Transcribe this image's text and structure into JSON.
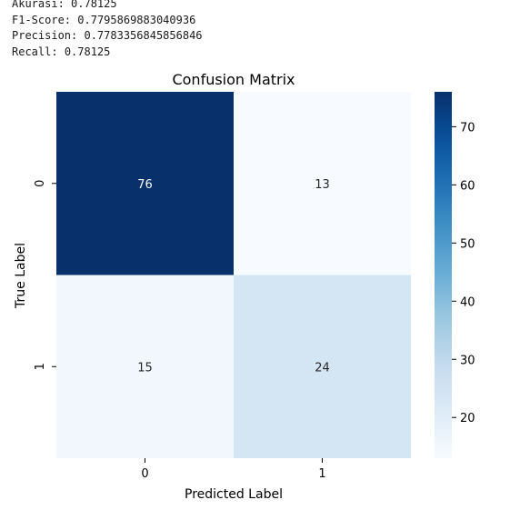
{
  "output_lines": [
    {
      "label": "Akurasi:",
      "value": "0.78125"
    },
    {
      "label": "F1-Score:",
      "value": "0.7795869883040936"
    },
    {
      "label": "Precision:",
      "value": "0.7783356845856846"
    },
    {
      "label": "Recall:",
      "value": "0.78125"
    }
  ],
  "chart_data": {
    "type": "heatmap",
    "title": "Confusion Matrix",
    "xlabel": "Predicted Label",
    "ylabel": "True Label",
    "x_categories": [
      "0",
      "1"
    ],
    "y_categories": [
      "0",
      "1"
    ],
    "values": [
      [
        76,
        13
      ],
      [
        15,
        24
      ]
    ],
    "annotations": true,
    "colormap": "Blues",
    "colorbar": {
      "min": 13,
      "max": 76,
      "ticks": [
        20,
        30,
        40,
        50,
        60,
        70
      ]
    },
    "colors": {
      "high": "#08306b",
      "low": "#f7fbff",
      "text_dark_cell": "#ffffff",
      "text_light_cell": "#262626"
    }
  }
}
